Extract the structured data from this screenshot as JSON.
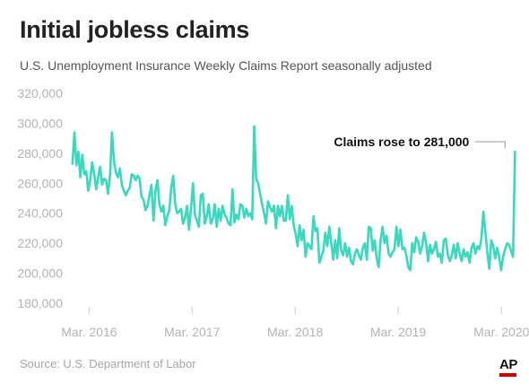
{
  "header": {
    "title": "Initial jobless claims",
    "subtitle": "U.S. Unemployment Insurance Weekly Claims Report seasonally adjusted"
  },
  "footer": {
    "source": "Source: U.S. Department of Labor",
    "logo": "AP"
  },
  "colors": {
    "line": "#38d9bd",
    "axis_text": "#b3b3b3",
    "tick": "#cccccc",
    "title": "#222222",
    "ap_red": "#cc0000"
  },
  "chart_data": {
    "type": "line",
    "title": "Initial jobless claims",
    "subtitle": "U.S. Unemployment Insurance Weekly Claims Report seasonally adjusted",
    "xlabel": "",
    "ylabel": "",
    "ylim": [
      180000,
      320000
    ],
    "yticks": [
      180000,
      200000,
      220000,
      240000,
      260000,
      280000,
      300000,
      320000
    ],
    "ytick_labels": [
      "180,000",
      "200,000",
      "220,000",
      "240,000",
      "260,000",
      "280,000",
      "300,000",
      "320,000"
    ],
    "xticks": [
      {
        "label": "Mar. 2016",
        "date": "2016-03-01"
      },
      {
        "label": "Mar. 2017",
        "date": "2017-03-01"
      },
      {
        "label": "Mar. 2018",
        "date": "2018-03-01"
      },
      {
        "label": "Mar. 2019",
        "date": "2019-03-01"
      },
      {
        "label": "Mar. 2020",
        "date": "2020-03-01"
      }
    ],
    "xlim": [
      "2015-12-05",
      "2020-04-20"
    ],
    "grid": false,
    "series": [
      {
        "start_date": "2016-01-02",
        "interval_days": 7,
        "values": [
          273000,
          294000,
          272000,
          281000,
          264000,
          279000,
          266000,
          268000,
          255000,
          262000,
          274000,
          266000,
          256000,
          264000,
          271000,
          259000,
          263000,
          262000,
          253000,
          265000,
          294000,
          275000,
          267000,
          264000,
          270000,
          259000,
          255000,
          252000,
          255000,
          257000,
          266000,
          265000,
          262000,
          265000,
          263000,
          251000,
          249000,
          242000,
          245000,
          252000,
          259000,
          235000,
          255000,
          262000,
          246000,
          241000,
          245000,
          232000,
          238000,
          242000,
          257000,
          265000,
          246000,
          240000,
          241000,
          243000,
          233000,
          237000,
          245000,
          229000,
          243000,
          260000,
          239000,
          235000,
          231000,
          252000,
          253000,
          233000,
          238000,
          246000,
          233000,
          236000,
          246000,
          231000,
          243000,
          235000,
          245000,
          239000,
          237000,
          233000,
          232000,
          256000,
          234000,
          239000,
          236000,
          246000,
          245000,
          237000,
          243000,
          238000,
          240000,
          236000,
          298000,
          263000,
          260000,
          253000,
          246000,
          240000,
          233000,
          248000,
          244000,
          241000,
          245000,
          230000,
          245000,
          238000,
          245000,
          235000,
          235000,
          252000,
          236000,
          245000,
          232000,
          226000,
          218000,
          232000,
          222000,
          229000,
          211000,
          220000,
          218000,
          216000,
          238000,
          228000,
          230000,
          207000,
          211000,
          215000,
          227000,
          218000,
          231000,
          220000,
          209000,
          222000,
          210000,
          230000,
          215000,
          212000,
          220000,
          211000,
          217000,
          208000,
          206000,
          213000,
          216000,
          212000,
          209000,
          217000,
          220000,
          209000,
          231000,
          230000,
          215000,
          222000,
          210000,
          204000,
          222000,
          231000,
          220000,
          225000,
          213000,
          211000,
          214000,
          216000,
          231000,
          218000,
          229000,
          216000,
          217000,
          212000,
          204000,
          202000,
          220000,
          214000,
          224000,
          221000,
          213000,
          218000,
          227000,
          220000,
          208000,
          219000,
          213000,
          216000,
          221000,
          211000,
          213000,
          207000,
          222000,
          223000,
          212000,
          208000,
          212000,
          219000,
          210000,
          220000,
          213000,
          208000,
          216000,
          211000,
          214000,
          207000,
          217000,
          220000,
          213000,
          218000,
          216000,
          223000,
          241000,
          228000,
          214000,
          203000,
          222000,
          218000,
          210000,
          217000,
          211000,
          202000,
          211000,
          216000,
          220000,
          219000,
          215000,
          211000,
          281000
        ]
      }
    ],
    "annotations": [
      {
        "text": "Claims rose to 281,000",
        "date": "2020-03-14",
        "value": 281000
      }
    ]
  }
}
